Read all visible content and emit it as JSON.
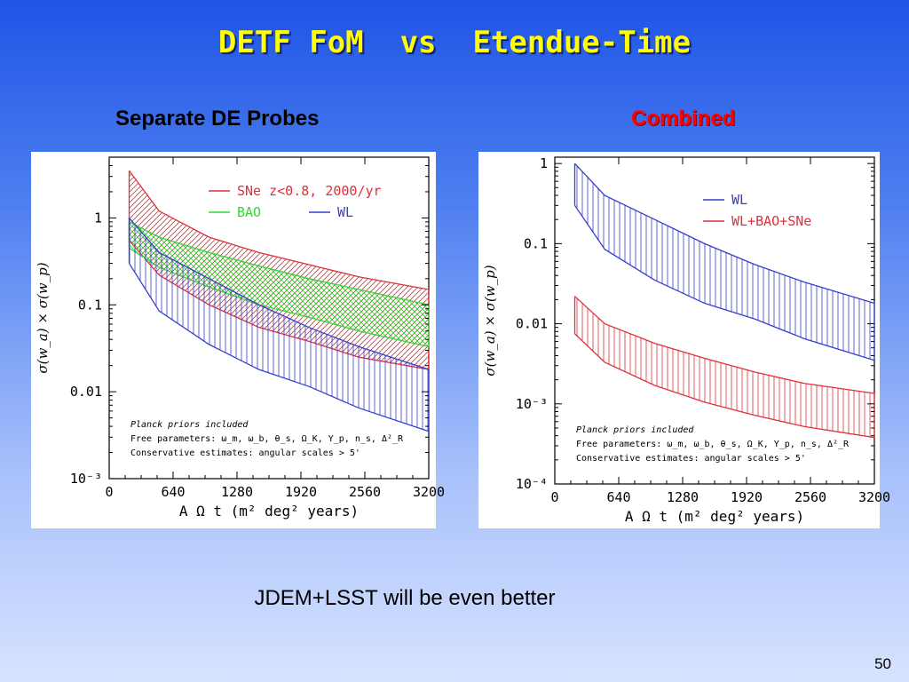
{
  "slide": {
    "title": "DETF FoM  vs  Etendue-Time",
    "left_heading": "Separate DE Probes",
    "right_heading": "Combined",
    "note": "JDEM+LSST will be even better",
    "page_number": "50"
  },
  "colors": {
    "red": "#e0303a",
    "green": "#33d633",
    "blue": "#3340d0"
  },
  "chart_data": [
    {
      "type": "area",
      "title": "",
      "xlabel": "A Ω t  (m² deg² years)",
      "ylabel": "σ(w_a) × σ(w_p)",
      "x_ticks": [
        "0",
        "640",
        "1280",
        "1920",
        "2560",
        "3200"
      ],
      "y_ticks": [
        "1",
        "0.1",
        "0.01",
        "10⁻³"
      ],
      "xlim": [
        0,
        3200
      ],
      "ylim": [
        0.001,
        5
      ],
      "yscale": "log",
      "legend": [
        "SNe z<0.8, 2000/yr",
        "BAO",
        "WL"
      ],
      "annotations": [
        "Planck priors included",
        "Free parameters: ω_m, ω_b, θ_s, Ω_K, Y_p, n_s, Δ²_R",
        "Conservative estimates: angular scales > 5'"
      ],
      "series": [
        {
          "name": "SNe z<0.8, 2000/yr",
          "color": "red",
          "hatch": "diagonal",
          "x": [
            200,
            500,
            1000,
            1500,
            2000,
            2500,
            3200
          ],
          "upper": [
            3.5,
            1.2,
            0.6,
            0.4,
            0.29,
            0.21,
            0.15
          ],
          "lower": [
            0.55,
            0.22,
            0.1,
            0.055,
            0.038,
            0.025,
            0.018
          ]
        },
        {
          "name": "BAO",
          "color": "green",
          "hatch": "crosshatch",
          "x": [
            200,
            500,
            1000,
            1500,
            2000,
            2500,
            3200
          ],
          "upper": [
            0.9,
            0.6,
            0.4,
            0.28,
            0.2,
            0.15,
            0.1
          ],
          "lower": [
            0.45,
            0.27,
            0.16,
            0.1,
            0.072,
            0.05,
            0.033
          ]
        },
        {
          "name": "WL",
          "color": "blue",
          "hatch": "vertical",
          "x": [
            200,
            500,
            1000,
            1500,
            2000,
            2500,
            3200
          ],
          "upper": [
            1.0,
            0.4,
            0.2,
            0.1,
            0.055,
            0.033,
            0.018
          ],
          "lower": [
            0.3,
            0.085,
            0.035,
            0.018,
            0.0115,
            0.0065,
            0.0035
          ]
        }
      ]
    },
    {
      "type": "area",
      "title": "",
      "xlabel": "A Ω t  (m² deg² years)",
      "ylabel": "σ(w_a) × σ(w_p)",
      "x_ticks": [
        "0",
        "640",
        "1280",
        "1920",
        "2560",
        "3200"
      ],
      "y_ticks": [
        "1",
        "0.1",
        "0.01",
        "10⁻³",
        "10⁻⁴"
      ],
      "xlim": [
        0,
        3200
      ],
      "ylim": [
        0.0001,
        1.2
      ],
      "yscale": "log",
      "legend": [
        "WL",
        "WL+BAO+SNe"
      ],
      "annotations": [
        "Planck priors included",
        "Free parameters: ω_m, ω_b, θ_s, Ω_K, Y_p, n_s, Δ²_R",
        "Conservative estimates: angular scales > 5'"
      ],
      "series": [
        {
          "name": "WL",
          "color": "blue",
          "hatch": "vertical",
          "x": [
            200,
            500,
            1000,
            1500,
            2000,
            2500,
            3200
          ],
          "upper": [
            1.0,
            0.4,
            0.2,
            0.1,
            0.055,
            0.033,
            0.018
          ],
          "lower": [
            0.3,
            0.085,
            0.035,
            0.018,
            0.0115,
            0.0065,
            0.0035
          ]
        },
        {
          "name": "WL+BAO+SNe",
          "color": "red",
          "hatch": "vertical",
          "x": [
            200,
            500,
            1000,
            1500,
            2000,
            2500,
            3200
          ],
          "upper": [
            0.022,
            0.01,
            0.0057,
            0.0037,
            0.0025,
            0.0018,
            0.00135
          ],
          "lower": [
            0.0075,
            0.0033,
            0.0017,
            0.00105,
            0.00072,
            0.00052,
            0.00038
          ]
        }
      ]
    }
  ]
}
